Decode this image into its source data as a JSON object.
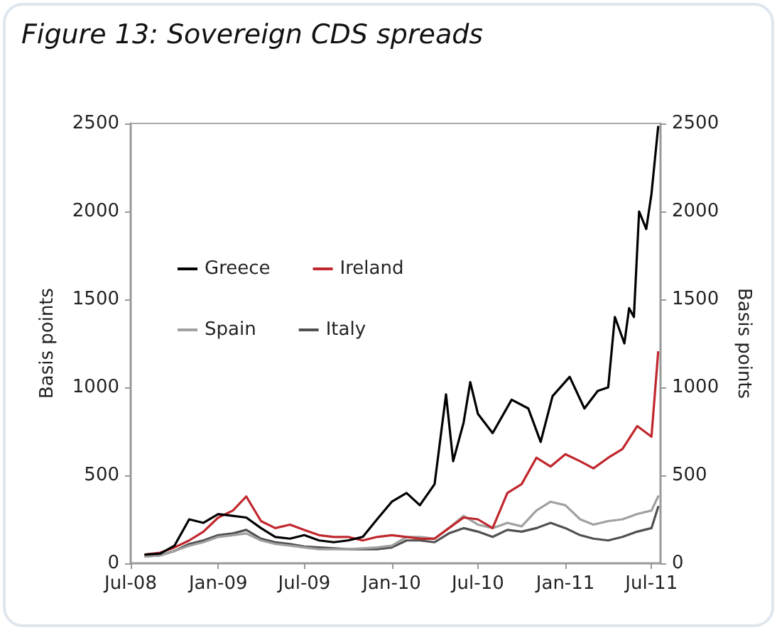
{
  "chart_data": {
    "type": "line",
    "title": "Figure 13: Sovereign CDS spreads",
    "ylabel": "Basis points",
    "y2label": "Basis points",
    "x": [
      "2008-08-01",
      "2008-09-01",
      "2008-10-01",
      "2008-11-01",
      "2008-12-01",
      "2009-01-01",
      "2009-02-01",
      "2009-03-01",
      "2009-04-01",
      "2009-05-01",
      "2009-06-01",
      "2009-07-01",
      "2009-08-01",
      "2009-09-01",
      "2009-10-01",
      "2009-11-01",
      "2009-12-01",
      "2010-01-01",
      "2010-02-01",
      "2010-03-01",
      "2010-04-01",
      "2010-05-01",
      "2010-06-01",
      "2010-07-01",
      "2010-08-01",
      "2010-09-01",
      "2010-10-01",
      "2010-11-01",
      "2010-12-01",
      "2011-01-01",
      "2011-02-01",
      "2011-03-01",
      "2011-04-01",
      "2011-05-01",
      "2011-06-01",
      "2011-07-01",
      "2011-07-15"
    ],
    "series": [
      {
        "name": "Greece",
        "color": "#000000",
        "x": [
          "2008-08-01",
          "2008-09-01",
          "2008-10-01",
          "2008-11-01",
          "2008-12-01",
          "2009-01-01",
          "2009-02-01",
          "2009-03-01",
          "2009-04-01",
          "2009-05-01",
          "2009-06-01",
          "2009-07-01",
          "2009-08-01",
          "2009-09-01",
          "2009-10-01",
          "2009-11-01",
          "2009-12-01",
          "2010-01-01",
          "2010-02-01",
          "2010-03-01",
          "2010-04-01",
          "2010-04-25",
          "2010-05-10",
          "2010-06-01",
          "2010-06-15",
          "2010-07-01",
          "2010-08-01",
          "2010-09-10",
          "2010-10-15",
          "2010-11-10",
          "2010-12-05",
          "2011-01-10",
          "2011-02-10",
          "2011-03-10",
          "2011-04-01",
          "2011-04-15",
          "2011-05-05",
          "2011-05-15",
          "2011-05-25",
          "2011-06-05",
          "2011-06-20",
          "2011-07-01",
          "2011-07-15"
        ],
        "values": [
          50,
          55,
          100,
          250,
          230,
          280,
          270,
          260,
          200,
          150,
          140,
          160,
          130,
          120,
          130,
          150,
          250,
          350,
          400,
          330,
          450,
          960,
          580,
          800,
          1030,
          850,
          740,
          930,
          880,
          690,
          950,
          1060,
          880,
          980,
          1000,
          1400,
          1250,
          1450,
          1400,
          2000,
          1900,
          2100,
          2480
        ]
      },
      {
        "name": "Ireland",
        "color": "#c0272d",
        "values": [
          50,
          60,
          90,
          130,
          180,
          260,
          300,
          380,
          240,
          200,
          220,
          190,
          160,
          150,
          150,
          130,
          150,
          160,
          150,
          140,
          140,
          200,
          260,
          250,
          200,
          400,
          450,
          600,
          550,
          620,
          580,
          540,
          600,
          650,
          780,
          720,
          1200
        ]
      },
      {
        "name": "Spain",
        "color": "#a0a0a0",
        "values": [
          40,
          45,
          70,
          100,
          120,
          150,
          160,
          170,
          130,
          110,
          100,
          90,
          80,
          80,
          80,
          85,
          90,
          100,
          150,
          150,
          140,
          200,
          270,
          220,
          200,
          230,
          210,
          300,
          350,
          330,
          250,
          220,
          240,
          250,
          280,
          300,
          380
        ]
      },
      {
        "name": "Italy",
        "color": "#505050",
        "values": [
          40,
          45,
          70,
          110,
          130,
          160,
          170,
          190,
          140,
          120,
          110,
          95,
          90,
          85,
          80,
          80,
          80,
          90,
          130,
          130,
          120,
          170,
          200,
          180,
          150,
          190,
          180,
          200,
          230,
          200,
          160,
          140,
          130,
          150,
          180,
          200,
          320
        ]
      }
    ],
    "xlim": [
      "2008-07-01",
      "2011-07-20"
    ],
    "xticks": [
      {
        "value": "2008-07-01",
        "label": "Jul-08"
      },
      {
        "value": "2009-01-01",
        "label": "Jan-09"
      },
      {
        "value": "2009-07-01",
        "label": "Jul-09"
      },
      {
        "value": "2010-01-01",
        "label": "Jan-10"
      },
      {
        "value": "2010-07-01",
        "label": "Jul-10"
      },
      {
        "value": "2011-01-01",
        "label": "Jan-11"
      },
      {
        "value": "2011-07-01",
        "label": "Jul-11"
      }
    ],
    "ylim": [
      0,
      2500
    ],
    "yticks": [
      0,
      500,
      1000,
      1500,
      2000,
      2500
    ],
    "y2lim": [
      0,
      2500
    ],
    "y2ticks": [
      0,
      500,
      1000,
      1500,
      2000,
      2500
    ],
    "grid": false,
    "legend": "top left",
    "marker": "none",
    "line_style": "solid"
  }
}
